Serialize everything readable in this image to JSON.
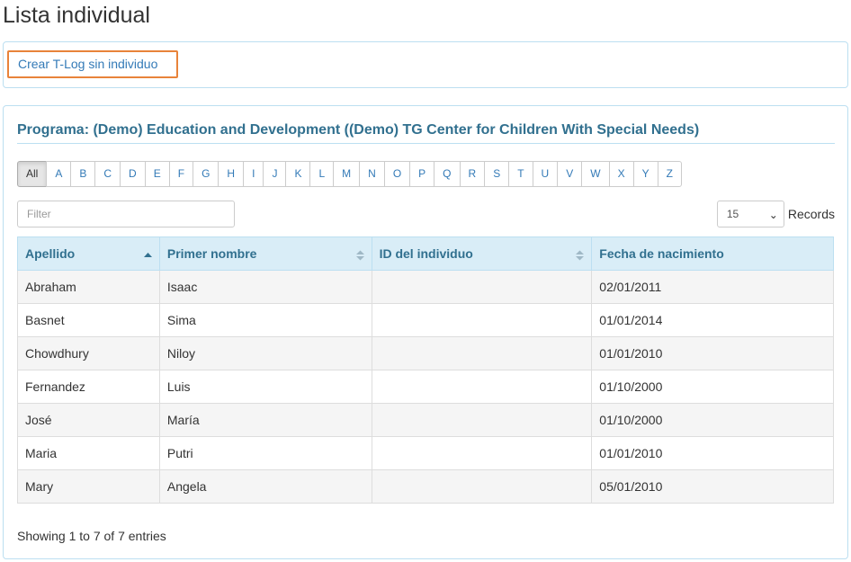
{
  "page": {
    "title": "Lista individual"
  },
  "actions": {
    "create_tlog_label": "Crear T-Log sin individuo"
  },
  "program": {
    "title": "Programa: (Demo) Education and Development ((Demo) TG Center for Children With Special Needs)"
  },
  "alphabet": {
    "active": "All",
    "letters": [
      "All",
      "A",
      "B",
      "C",
      "D",
      "E",
      "F",
      "G",
      "H",
      "I",
      "J",
      "K",
      "L",
      "M",
      "N",
      "O",
      "P",
      "Q",
      "R",
      "S",
      "T",
      "U",
      "V",
      "W",
      "X",
      "Y",
      "Z"
    ]
  },
  "filter": {
    "placeholder": "Filter",
    "value": ""
  },
  "records": {
    "selected": "15",
    "label": "Records"
  },
  "table": {
    "columns": [
      {
        "label": "Apellido",
        "sort": "asc"
      },
      {
        "label": "Primer nombre",
        "sort": "both"
      },
      {
        "label": "ID del individuo",
        "sort": "both"
      },
      {
        "label": "Fecha de nacimiento",
        "sort": "none"
      }
    ],
    "rows": [
      [
        "Abraham",
        "Isaac",
        "",
        "02/01/2011"
      ],
      [
        "Basnet",
        "Sima",
        "",
        "01/01/2014"
      ],
      [
        "Chowdhury",
        "Niloy",
        "",
        "01/01/2010"
      ],
      [
        "Fernandez",
        "Luis",
        "",
        "01/10/2000"
      ],
      [
        "José",
        "María",
        "",
        "01/10/2000"
      ],
      [
        "Maria",
        "Putri",
        "",
        "01/01/2010"
      ],
      [
        "Mary",
        "Angela",
        "",
        "05/01/2010"
      ]
    ]
  },
  "footer": {
    "showing": "Showing 1 to 7 of 7 entries"
  },
  "colors": {
    "accent_link": "#337ab7",
    "header_bg": "#d9edf7",
    "header_text": "#31708f",
    "highlight_border": "#e8833a"
  }
}
